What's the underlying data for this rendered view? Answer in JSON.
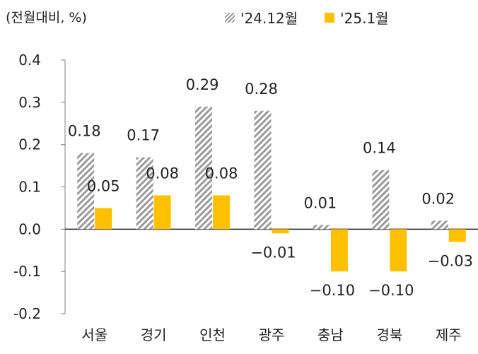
{
  "chart_data": {
    "type": "bar",
    "unit_label": "(전월대비, %)",
    "categories": [
      "서울",
      "경기",
      "인천",
      "광주",
      "충남",
      "경북",
      "제주"
    ],
    "series": [
      {
        "name": "'24.12월",
        "values": [
          0.18,
          0.17,
          0.29,
          0.28,
          0.01,
          0.14,
          0.02
        ],
        "labels": [
          "0.18",
          "0.17",
          "0.29",
          "0.28",
          "0.01",
          "0.14",
          "0.02"
        ],
        "style": "hatched",
        "color": "#9a9a9a"
      },
      {
        "name": "'25.1월",
        "values": [
          0.05,
          0.08,
          0.08,
          -0.01,
          -0.1,
          -0.1,
          -0.03
        ],
        "labels": [
          "0.05",
          "0.08",
          "0.08",
          "−0.01",
          "−0.10",
          "−0.10",
          "−0.03"
        ],
        "style": "solid",
        "color": "#ffc000"
      }
    ],
    "yticks": [
      "0.4",
      "0.3",
      "0.2",
      "0.1",
      "0.0",
      "-0.1",
      "-0.2"
    ],
    "ylim": [
      -0.2,
      0.4
    ],
    "grid": false
  }
}
